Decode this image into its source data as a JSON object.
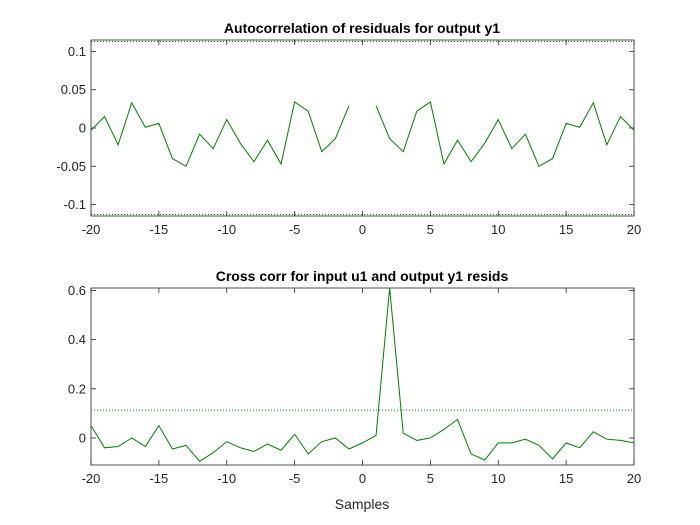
{
  "chart_data": [
    {
      "type": "line",
      "title": "Autocorrelation of residuals for output y1",
      "xlabel": "",
      "ylabel": "",
      "xlim": [
        -20,
        20
      ],
      "ylim": [
        -0.115,
        0.115
      ],
      "xticks": [
        -20,
        -15,
        -10,
        -5,
        0,
        5,
        10,
        15,
        20
      ],
      "xtick_labels": [
        "-20",
        "-15",
        "-10",
        "-5",
        "0",
        "5",
        "10",
        "15",
        "20"
      ],
      "yticks": [
        -0.1,
        -0.05,
        0,
        0.05,
        0.1
      ],
      "ytick_labels": [
        "-0.1",
        "-0.05",
        "0",
        "0.05",
        "0.1"
      ],
      "confidence_bound": 0.113,
      "grid": false,
      "line_color": "#008000",
      "bound_color": "#008000",
      "x": [
        -20,
        -19,
        -18,
        -17,
        -16,
        -15,
        -14,
        -13,
        -12,
        -11,
        -10,
        -9,
        -8,
        -7,
        -6,
        -5,
        -4,
        -3,
        -2,
        -1,
        0,
        1,
        2,
        3,
        4,
        5,
        6,
        7,
        8,
        9,
        10,
        11,
        12,
        13,
        14,
        15,
        16,
        17,
        18,
        19,
        20
      ],
      "values": [
        -0.003,
        0.015,
        -0.022,
        0.033,
        0.001,
        0.006,
        -0.04,
        -0.05,
        -0.008,
        -0.027,
        0.011,
        -0.02,
        -0.044,
        -0.016,
        -0.047,
        0.034,
        0.022,
        -0.031,
        -0.014,
        0.029,
        null,
        0.029,
        -0.014,
        -0.031,
        0.022,
        0.034,
        -0.047,
        -0.016,
        -0.044,
        -0.02,
        0.011,
        -0.027,
        -0.008,
        -0.05,
        -0.04,
        0.006,
        0.001,
        0.033,
        -0.022,
        0.015,
        -0.003
      ]
    },
    {
      "type": "line",
      "title": "Cross corr for input u1 and output y1 resids",
      "xlabel": "Samples",
      "ylabel": "",
      "xlim": [
        -20,
        20
      ],
      "ylim": [
        -0.11,
        0.61
      ],
      "xticks": [
        -20,
        -15,
        -10,
        -5,
        0,
        5,
        10,
        15,
        20
      ],
      "xtick_labels": [
        "-20",
        "-15",
        "-10",
        "-5",
        "0",
        "5",
        "10",
        "15",
        "20"
      ],
      "yticks": [
        0,
        0.2,
        0.4,
        0.6
      ],
      "ytick_labels": [
        "0",
        "0.2",
        "0.4",
        "0.6"
      ],
      "confidence_bound": 0.113,
      "grid": false,
      "line_color": "#008000",
      "bound_color": "#008000",
      "x": [
        -20,
        -19,
        -18,
        -17,
        -16,
        -15,
        -14,
        -13,
        -12,
        -11,
        -10,
        -9,
        -8,
        -7,
        -6,
        -5,
        -4,
        -3,
        -2,
        -1,
        0,
        1,
        2,
        3,
        4,
        5,
        6,
        7,
        8,
        9,
        10,
        11,
        12,
        13,
        14,
        15,
        16,
        17,
        18,
        19,
        20
      ],
      "values": [
        0.05,
        -0.04,
        -0.035,
        0.0,
        -0.035,
        0.05,
        -0.045,
        -0.03,
        -0.095,
        -0.06,
        -0.015,
        -0.04,
        -0.055,
        -0.025,
        -0.05,
        0.015,
        -0.065,
        -0.015,
        0.0,
        -0.045,
        -0.02,
        0.01,
        0.61,
        0.02,
        -0.01,
        0.0,
        0.035,
        0.075,
        -0.065,
        -0.09,
        -0.02,
        -0.02,
        -0.005,
        -0.03,
        -0.085,
        -0.02,
        -0.04,
        0.025,
        -0.005,
        -0.01,
        -0.02
      ]
    }
  ]
}
